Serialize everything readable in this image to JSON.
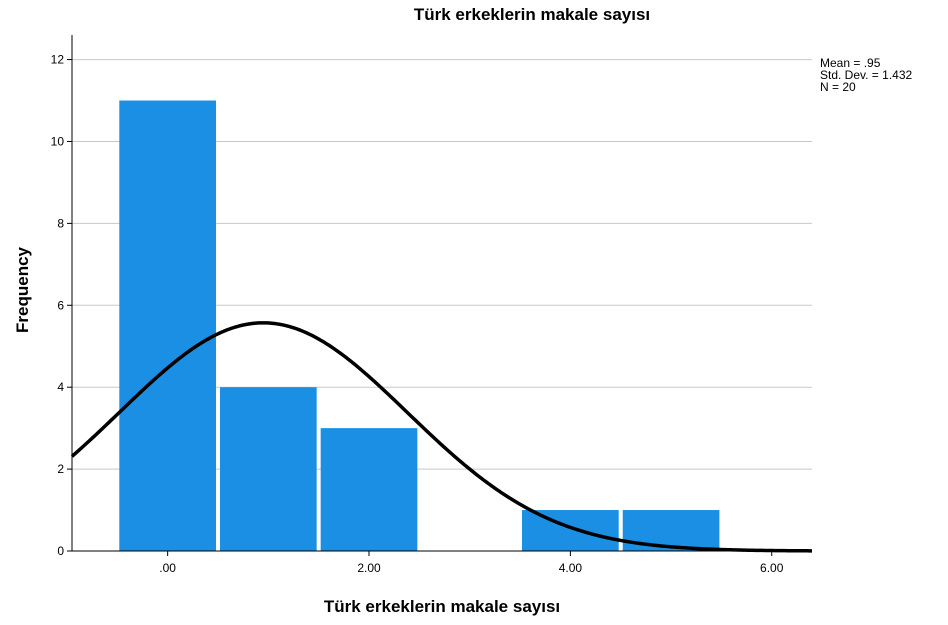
{
  "chart_data": {
    "type": "bar",
    "title": "Türk erkeklerin makale sayısı",
    "xlabel": "Türk erkeklerin makale sayısı",
    "ylabel": "Frequency",
    "bins": [
      {
        "x": 0,
        "frequency": 11
      },
      {
        "x": 1,
        "frequency": 4
      },
      {
        "x": 2,
        "frequency": 3
      },
      {
        "x": 3,
        "frequency": 0
      },
      {
        "x": 4,
        "frequency": 1
      },
      {
        "x": 5,
        "frequency": 1
      }
    ],
    "xlim": [
      -0.95,
      6.4
    ],
    "ylim": [
      0,
      12.6
    ],
    "x_ticks": [
      {
        "value": 0,
        "label": ".00"
      },
      {
        "value": 2,
        "label": "2.00"
      },
      {
        "value": 4,
        "label": "4.00"
      },
      {
        "value": 6,
        "label": "6.00"
      }
    ],
    "y_ticks": [
      {
        "value": 0,
        "label": "0"
      },
      {
        "value": 2,
        "label": "2"
      },
      {
        "value": 4,
        "label": "4"
      },
      {
        "value": 6,
        "label": "6"
      },
      {
        "value": 8,
        "label": "8"
      },
      {
        "value": 10,
        "label": "10"
      },
      {
        "value": 12,
        "label": "12"
      }
    ],
    "grid": "horizontal",
    "normal_curve": {
      "mean": 0.95,
      "std_dev": 1.432,
      "n": 20,
      "bin_width": 1
    },
    "stats": [
      "Mean = .95",
      "Std. Dev. = 1.432",
      "N = 20"
    ],
    "stats_placement": "top-right",
    "colors": {
      "bar": "#1a8fe3",
      "curve": "#000000",
      "grid": "#c8c8c8",
      "axis": "#000000"
    }
  }
}
